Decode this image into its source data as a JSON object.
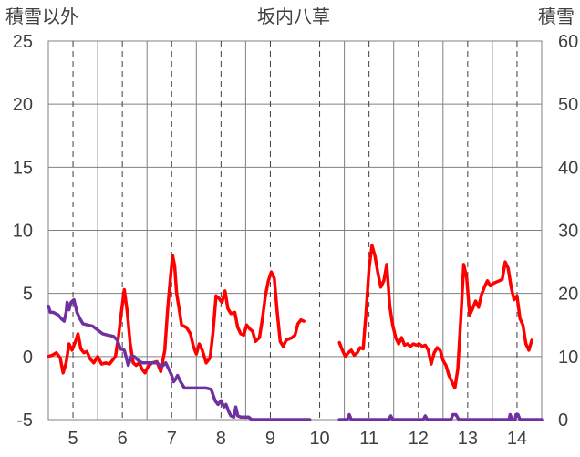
{
  "chart_data": {
    "type": "line",
    "title": "坂内八草",
    "y_left_label": "積雪以外",
    "y_right_label": "積雪",
    "y_left_lim": [
      -5,
      25
    ],
    "y_right_lim": [
      0,
      60
    ],
    "y_left_ticks": [
      "25",
      "20",
      "15",
      "10",
      "5",
      "0",
      "-5"
    ],
    "y_right_ticks": [
      "60",
      "50",
      "40",
      "30",
      "20",
      "10",
      "0"
    ],
    "x_lim": [
      4.5,
      14.5
    ],
    "x_ticks": [
      "5",
      "6",
      "7",
      "8",
      "9",
      "10",
      "11",
      "12",
      "13",
      "14"
    ],
    "grid": true,
    "series": [
      {
        "color": "#ff0000",
        "axis": "left",
        "segments": [
          [
            [
              4.5,
              0.0
            ],
            [
              4.58,
              0.1
            ],
            [
              4.66,
              0.3
            ],
            [
              4.74,
              -0.1
            ],
            [
              4.8,
              -1.3
            ],
            [
              4.86,
              -0.5
            ],
            [
              4.92,
              1.0
            ],
            [
              4.98,
              0.5
            ],
            [
              5.05,
              1.2
            ],
            [
              5.1,
              1.8
            ],
            [
              5.16,
              0.6
            ],
            [
              5.22,
              0.3
            ],
            [
              5.28,
              0.4
            ],
            [
              5.35,
              -0.2
            ],
            [
              5.42,
              -0.5
            ],
            [
              5.5,
              0.0
            ],
            [
              5.58,
              -0.6
            ],
            [
              5.66,
              -0.5
            ],
            [
              5.74,
              -0.6
            ],
            [
              5.8,
              -0.3
            ],
            [
              5.86,
              0.0
            ],
            [
              5.92,
              1.5
            ],
            [
              5.98,
              3.5
            ],
            [
              6.04,
              5.3
            ],
            [
              6.1,
              3.5
            ],
            [
              6.16,
              1.0
            ],
            [
              6.22,
              -0.5
            ],
            [
              6.28,
              -0.7
            ],
            [
              6.34,
              -0.5
            ],
            [
              6.4,
              -1.0
            ],
            [
              6.46,
              -1.3
            ],
            [
              6.52,
              -0.8
            ],
            [
              6.6,
              -0.5
            ],
            [
              6.7,
              -0.4
            ],
            [
              6.78,
              -1.2
            ],
            [
              6.86,
              0.5
            ],
            [
              6.92,
              3.8
            ],
            [
              6.98,
              6.5
            ],
            [
              7.02,
              8.0
            ],
            [
              7.06,
              7.2
            ],
            [
              7.1,
              5.0
            ],
            [
              7.15,
              3.8
            ],
            [
              7.2,
              2.5
            ],
            [
              7.3,
              2.3
            ],
            [
              7.38,
              1.8
            ],
            [
              7.44,
              0.8
            ],
            [
              7.5,
              0.2
            ],
            [
              7.56,
              1.0
            ],
            [
              7.62,
              0.5
            ],
            [
              7.7,
              -0.5
            ],
            [
              7.78,
              -0.1
            ],
            [
              7.84,
              2.0
            ],
            [
              7.9,
              4.8
            ],
            [
              7.96,
              4.6
            ],
            [
              8.02,
              4.3
            ],
            [
              8.08,
              5.2
            ],
            [
              8.14,
              3.8
            ],
            [
              8.2,
              3.4
            ],
            [
              8.28,
              3.5
            ],
            [
              8.34,
              2.3
            ],
            [
              8.4,
              1.8
            ],
            [
              8.46,
              1.7
            ],
            [
              8.52,
              2.5
            ],
            [
              8.58,
              2.2
            ],
            [
              8.64,
              2.0
            ],
            [
              8.7,
              1.2
            ],
            [
              8.78,
              1.5
            ],
            [
              8.84,
              3.0
            ],
            [
              8.9,
              4.8
            ],
            [
              8.96,
              6.0
            ],
            [
              9.02,
              6.7
            ],
            [
              9.08,
              6.2
            ],
            [
              9.14,
              3.5
            ],
            [
              9.2,
              1.2
            ],
            [
              9.26,
              0.8
            ],
            [
              9.32,
              1.3
            ],
            [
              9.38,
              1.4
            ],
            [
              9.44,
              1.5
            ],
            [
              9.5,
              1.7
            ],
            [
              9.56,
              2.6
            ],
            [
              9.62,
              2.9
            ],
            [
              9.68,
              2.8
            ]
          ],
          [
            [
              10.4,
              1.1
            ],
            [
              10.46,
              0.5
            ],
            [
              10.52,
              0.0
            ],
            [
              10.58,
              0.3
            ],
            [
              10.64,
              0.5
            ],
            [
              10.7,
              0.1
            ],
            [
              10.76,
              0.3
            ],
            [
              10.82,
              0.7
            ],
            [
              10.88,
              0.6
            ],
            [
              10.94,
              3.5
            ],
            [
              11.0,
              7.0
            ],
            [
              11.06,
              8.8
            ],
            [
              11.12,
              8.0
            ],
            [
              11.18,
              6.6
            ],
            [
              11.24,
              5.5
            ],
            [
              11.3,
              6.0
            ],
            [
              11.36,
              7.3
            ],
            [
              11.42,
              4.0
            ],
            [
              11.48,
              2.5
            ],
            [
              11.54,
              1.5
            ],
            [
              11.6,
              1.0
            ],
            [
              11.66,
              1.5
            ],
            [
              11.72,
              0.9
            ],
            [
              11.78,
              1.0
            ],
            [
              11.84,
              0.8
            ],
            [
              11.9,
              1.0
            ],
            [
              11.96,
              0.9
            ],
            [
              12.02,
              1.0
            ],
            [
              12.08,
              0.8
            ],
            [
              12.14,
              0.9
            ],
            [
              12.2,
              0.5
            ],
            [
              12.26,
              -0.6
            ],
            [
              12.32,
              0.3
            ],
            [
              12.38,
              0.7
            ],
            [
              12.44,
              0.5
            ],
            [
              12.5,
              -0.3
            ],
            [
              12.56,
              -0.7
            ],
            [
              12.62,
              -1.5
            ],
            [
              12.68,
              -2.0
            ],
            [
              12.74,
              -2.5
            ],
            [
              12.8,
              -1.0
            ],
            [
              12.86,
              3.0
            ],
            [
              12.92,
              7.3
            ],
            [
              12.98,
              6.2
            ],
            [
              13.04,
              3.3
            ],
            [
              13.1,
              3.8
            ],
            [
              13.16,
              4.4
            ],
            [
              13.22,
              3.9
            ],
            [
              13.28,
              4.9
            ],
            [
              13.34,
              5.5
            ],
            [
              13.4,
              6.0
            ],
            [
              13.46,
              5.6
            ],
            [
              13.52,
              5.8
            ],
            [
              13.58,
              5.9
            ],
            [
              13.64,
              6.0
            ],
            [
              13.7,
              6.1
            ],
            [
              13.76,
              7.5
            ],
            [
              13.82,
              7.0
            ],
            [
              13.88,
              5.5
            ],
            [
              13.94,
              4.5
            ],
            [
              14.0,
              4.8
            ],
            [
              14.06,
              3.0
            ],
            [
              14.12,
              2.5
            ],
            [
              14.18,
              1.0
            ],
            [
              14.24,
              0.5
            ],
            [
              14.3,
              1.3
            ]
          ]
        ]
      },
      {
        "color": "#7030a0",
        "axis": "right",
        "segments": [
          [
            [
              4.5,
              18.0
            ],
            [
              4.54,
              17.0
            ],
            [
              4.6,
              17.0
            ],
            [
              4.7,
              16.6
            ],
            [
              4.76,
              16.0
            ],
            [
              4.82,
              15.6
            ],
            [
              4.86,
              17.0
            ],
            [
              4.88,
              18.6
            ],
            [
              4.92,
              17.4
            ],
            [
              4.96,
              18.6
            ],
            [
              5.02,
              19.0
            ],
            [
              5.08,
              17.0
            ],
            [
              5.14,
              16.0
            ],
            [
              5.2,
              15.2
            ],
            [
              5.3,
              15.0
            ],
            [
              5.4,
              14.8
            ],
            [
              5.5,
              14.2
            ],
            [
              5.6,
              13.6
            ],
            [
              5.7,
              13.4
            ],
            [
              5.82,
              13.2
            ],
            [
              5.9,
              12.6
            ],
            [
              5.96,
              11.2
            ],
            [
              6.04,
              11.0
            ],
            [
              6.08,
              9.8
            ],
            [
              6.12,
              8.6
            ],
            [
              6.18,
              10.0
            ],
            [
              6.24,
              10.0
            ],
            [
              6.32,
              9.4
            ],
            [
              6.4,
              9.0
            ],
            [
              6.5,
              9.0
            ],
            [
              6.6,
              9.0
            ],
            [
              6.7,
              9.0
            ],
            [
              6.8,
              8.4
            ],
            [
              6.88,
              9.0
            ],
            [
              6.94,
              8.0
            ],
            [
              7.0,
              7.0
            ],
            [
              7.04,
              6.0
            ],
            [
              7.08,
              6.4
            ],
            [
              7.12,
              7.0
            ],
            [
              7.18,
              6.0
            ],
            [
              7.26,
              5.0
            ],
            [
              7.36,
              5.0
            ],
            [
              7.5,
              5.0
            ],
            [
              7.6,
              5.0
            ],
            [
              7.7,
              5.0
            ],
            [
              7.8,
              4.8
            ],
            [
              7.88,
              3.0
            ],
            [
              7.94,
              2.4
            ],
            [
              8.0,
              3.0
            ],
            [
              8.06,
              2.0
            ],
            [
              8.1,
              2.4
            ],
            [
              8.16,
              1.2
            ],
            [
              8.2,
              0.6
            ],
            [
              8.26,
              0.4
            ],
            [
              8.3,
              2.0
            ],
            [
              8.34,
              0.6
            ],
            [
              8.4,
              0.4
            ],
            [
              8.48,
              0.4
            ],
            [
              8.56,
              0.4
            ],
            [
              8.62,
              0.0
            ],
            [
              8.7,
              0.0
            ],
            [
              8.8,
              0.0
            ],
            [
              9.0,
              0.0
            ],
            [
              9.2,
              0.0
            ],
            [
              9.4,
              0.0
            ],
            [
              9.6,
              0.0
            ],
            [
              9.8,
              0.0
            ]
          ],
          [
            [
              10.4,
              0.0
            ],
            [
              10.56,
              0.0
            ],
            [
              10.6,
              0.8
            ],
            [
              10.64,
              0.0
            ],
            [
              10.8,
              0.0
            ],
            [
              11.0,
              0.0
            ],
            [
              11.2,
              0.0
            ],
            [
              11.4,
              0.0
            ],
            [
              11.44,
              0.6
            ],
            [
              11.48,
              0.0
            ],
            [
              11.6,
              0.0
            ],
            [
              11.8,
              0.0
            ],
            [
              12.0,
              0.0
            ],
            [
              12.1,
              0.0
            ],
            [
              12.14,
              0.6
            ],
            [
              12.18,
              0.0
            ],
            [
              12.3,
              0.0
            ],
            [
              12.66,
              0.0
            ],
            [
              12.7,
              0.8
            ],
            [
              12.76,
              0.8
            ],
            [
              12.82,
              0.0
            ],
            [
              13.0,
              0.0
            ],
            [
              13.3,
              0.0
            ],
            [
              13.6,
              0.0
            ],
            [
              13.84,
              0.0
            ],
            [
              13.86,
              0.8
            ],
            [
              13.9,
              0.0
            ],
            [
              13.96,
              0.0
            ],
            [
              13.98,
              0.8
            ],
            [
              14.02,
              0.8
            ],
            [
              14.06,
              0.0
            ],
            [
              14.2,
              0.0
            ],
            [
              14.4,
              0.0
            ],
            [
              14.5,
              0.0
            ]
          ]
        ]
      }
    ]
  }
}
